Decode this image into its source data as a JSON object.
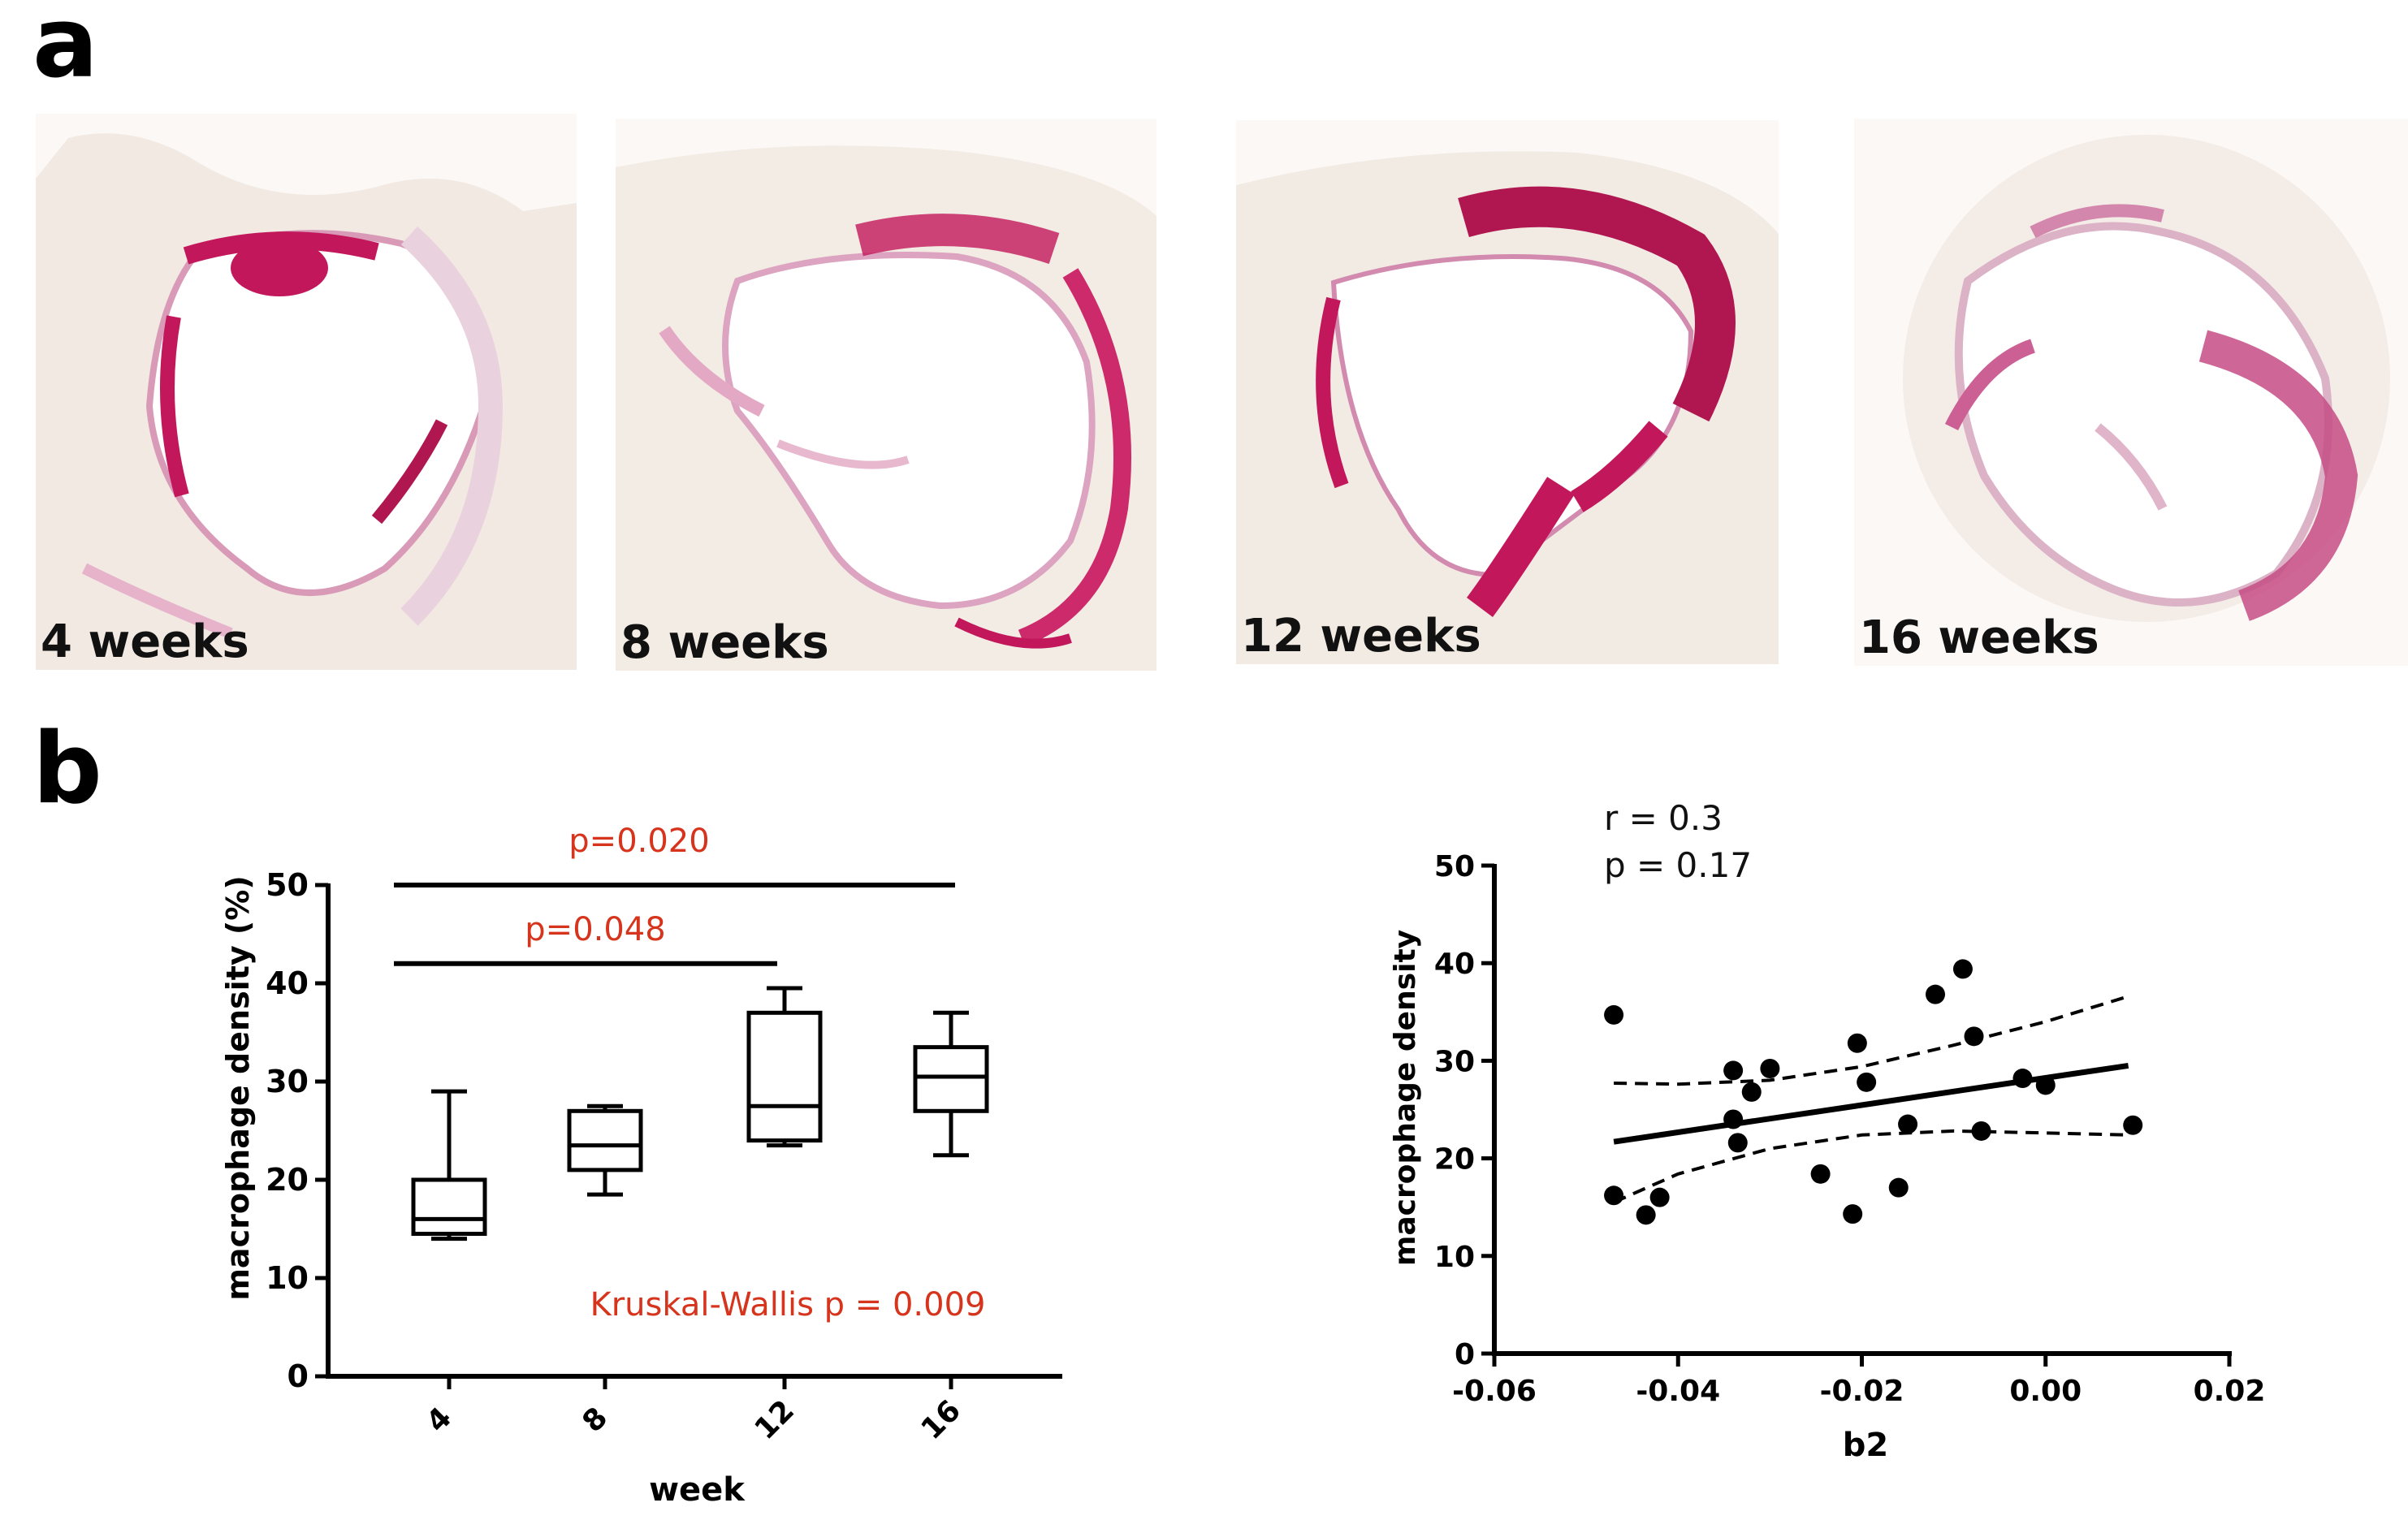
{
  "panels": {
    "a_letter": "a",
    "b_letter": "b"
  },
  "micrographs": [
    {
      "label": "4 weeks"
    },
    {
      "label": "8 weeks"
    },
    {
      "label": "12 weeks"
    },
    {
      "label": "16 weeks"
    }
  ],
  "colors": {
    "stain": "#c2185b",
    "stain_light": "#e8a6c6",
    "annotation": "#d6341c",
    "tissue_bg": "#fbf8f5"
  },
  "chart_data": [
    {
      "type": "box",
      "xlabel": "week",
      "ylabel": "macrophage density (%)",
      "ylim": [
        0,
        50
      ],
      "yticks": [
        "0",
        "10",
        "20",
        "30",
        "40",
        "50"
      ],
      "categories": [
        "4",
        "8",
        "12",
        "16"
      ],
      "boxes": [
        {
          "min": 14,
          "q1": 14.5,
          "median": 16,
          "q3": 20,
          "max": 29
        },
        {
          "min": 18.5,
          "q1": 21,
          "median": 23.5,
          "q3": 27,
          "max": 27.5
        },
        {
          "min": 23.5,
          "q1": 24,
          "median": 27.5,
          "q3": 37,
          "max": 39.5
        },
        {
          "min": 22.5,
          "q1": 27,
          "median": 30.5,
          "q3": 33.5,
          "max": 37
        }
      ],
      "annotations": {
        "bracket_top": {
          "from": "4",
          "to": "16",
          "y": 50,
          "label": "p=0.020"
        },
        "bracket_mid": {
          "from": "4",
          "to": "12",
          "y": 42,
          "label": "p=0.048"
        },
        "test": "Kruskal-Wallis p = 0.009"
      }
    },
    {
      "type": "scatter",
      "xlabel": "b2",
      "ylabel": "macrophage density",
      "xlim": [
        -0.06,
        0.02
      ],
      "ylim": [
        0,
        50
      ],
      "xticks": [
        "-0.06",
        "-0.04",
        "-0.02",
        "0.00",
        "0.02"
      ],
      "yticks": [
        "0",
        "10",
        "20",
        "30",
        "40",
        "50"
      ],
      "stats": {
        "r": "r = 0.3",
        "p": "p = 0.17"
      },
      "points": [
        [
          -0.047,
          34.7
        ],
        [
          -0.047,
          16.2
        ],
        [
          -0.0435,
          14.2
        ],
        [
          -0.042,
          16
        ],
        [
          -0.034,
          29
        ],
        [
          -0.034,
          24
        ],
        [
          -0.0335,
          21.6
        ],
        [
          -0.032,
          26.8
        ],
        [
          -0.03,
          29.2
        ],
        [
          -0.0245,
          18.4
        ],
        [
          -0.021,
          14.3
        ],
        [
          -0.0205,
          31.8
        ],
        [
          -0.0195,
          27.8
        ],
        [
          -0.016,
          17
        ],
        [
          -0.015,
          23.5
        ],
        [
          -0.012,
          36.8
        ],
        [
          -0.009,
          39.4
        ],
        [
          -0.0078,
          32.5
        ],
        [
          -0.007,
          22.8
        ],
        [
          -0.0025,
          28.2
        ],
        [
          0.0,
          27.5
        ],
        [
          0.0095,
          23.4
        ]
      ],
      "fit_line": [
        [
          -0.047,
          21.7
        ],
        [
          0.009,
          29.5
        ]
      ],
      "ci_upper": [
        [
          -0.047,
          27.7
        ],
        [
          -0.04,
          27.6
        ],
        [
          -0.03,
          28
        ],
        [
          -0.02,
          29.4
        ],
        [
          -0.01,
          31.6
        ],
        [
          0.0,
          34
        ],
        [
          0.009,
          36.6
        ]
      ],
      "ci_lower": [
        [
          -0.047,
          15.5
        ],
        [
          -0.04,
          18.4
        ],
        [
          -0.03,
          21
        ],
        [
          -0.02,
          22.4
        ],
        [
          -0.01,
          22.8
        ],
        [
          0.0,
          22.6
        ],
        [
          0.009,
          22.4
        ]
      ]
    }
  ]
}
